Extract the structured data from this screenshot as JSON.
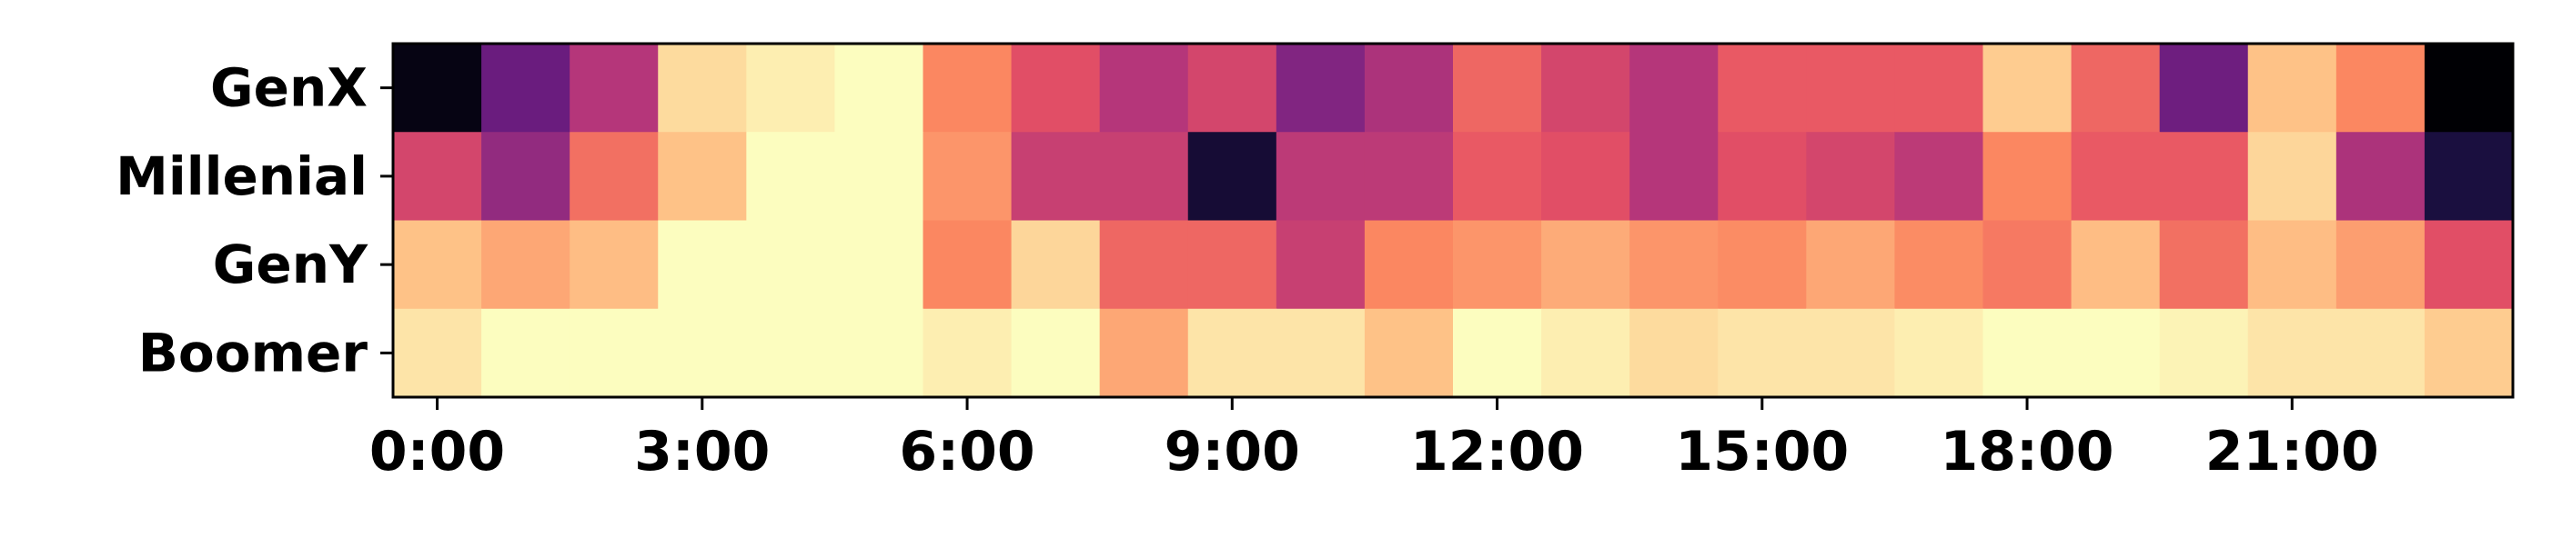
{
  "chart_data": {
    "type": "heatmap",
    "title": "",
    "xlabel": "",
    "ylabel": "",
    "colormap": "magma",
    "value_range": [
      0,
      1
    ],
    "rows": [
      "GenX",
      "Millenial",
      "GenY",
      "Boomer"
    ],
    "columns": [
      "0:00",
      "1:00",
      "2:00",
      "3:00",
      "4:00",
      "5:00",
      "6:00",
      "7:00",
      "8:00",
      "9:00",
      "10:00",
      "11:00",
      "12:00",
      "13:00",
      "14:00",
      "15:00",
      "16:00",
      "17:00",
      "18:00",
      "19:00",
      "20:00",
      "21:00",
      "22:00",
      "23:00"
    ],
    "x_ticks": [
      "0:00",
      "3:00",
      "6:00",
      "9:00",
      "12:00",
      "15:00",
      "18:00",
      "21:00"
    ],
    "x_tick_hours": [
      0,
      3,
      6,
      9,
      12,
      15,
      18,
      21
    ],
    "values": [
      [
        0.03,
        0.32,
        0.5,
        0.93,
        0.97,
        1.0,
        0.75,
        0.62,
        0.5,
        0.58,
        0.38,
        0.48,
        0.68,
        0.58,
        0.5,
        0.65,
        0.65,
        0.65,
        0.9,
        0.68,
        0.33,
        0.88,
        0.75,
        0.0
      ],
      [
        0.58,
        0.42,
        0.7,
        0.88,
        1.0,
        1.0,
        0.78,
        0.55,
        0.55,
        0.1,
        0.52,
        0.52,
        0.65,
        0.62,
        0.5,
        0.62,
        0.58,
        0.52,
        0.75,
        0.65,
        0.65,
        0.92,
        0.48,
        0.12
      ],
      [
        0.88,
        0.82,
        0.87,
        1.0,
        1.0,
        1.0,
        0.75,
        0.92,
        0.68,
        0.68,
        0.55,
        0.75,
        0.78,
        0.83,
        0.78,
        0.76,
        0.82,
        0.76,
        0.72,
        0.87,
        0.7,
        0.87,
        0.8,
        0.62
      ],
      [
        0.95,
        1.0,
        1.0,
        1.0,
        1.0,
        1.0,
        0.97,
        1.0,
        0.82,
        0.95,
        0.95,
        0.88,
        1.0,
        0.97,
        0.93,
        0.95,
        0.95,
        0.97,
        1.0,
        1.0,
        0.98,
        0.95,
        0.95,
        0.9
      ]
    ]
  }
}
